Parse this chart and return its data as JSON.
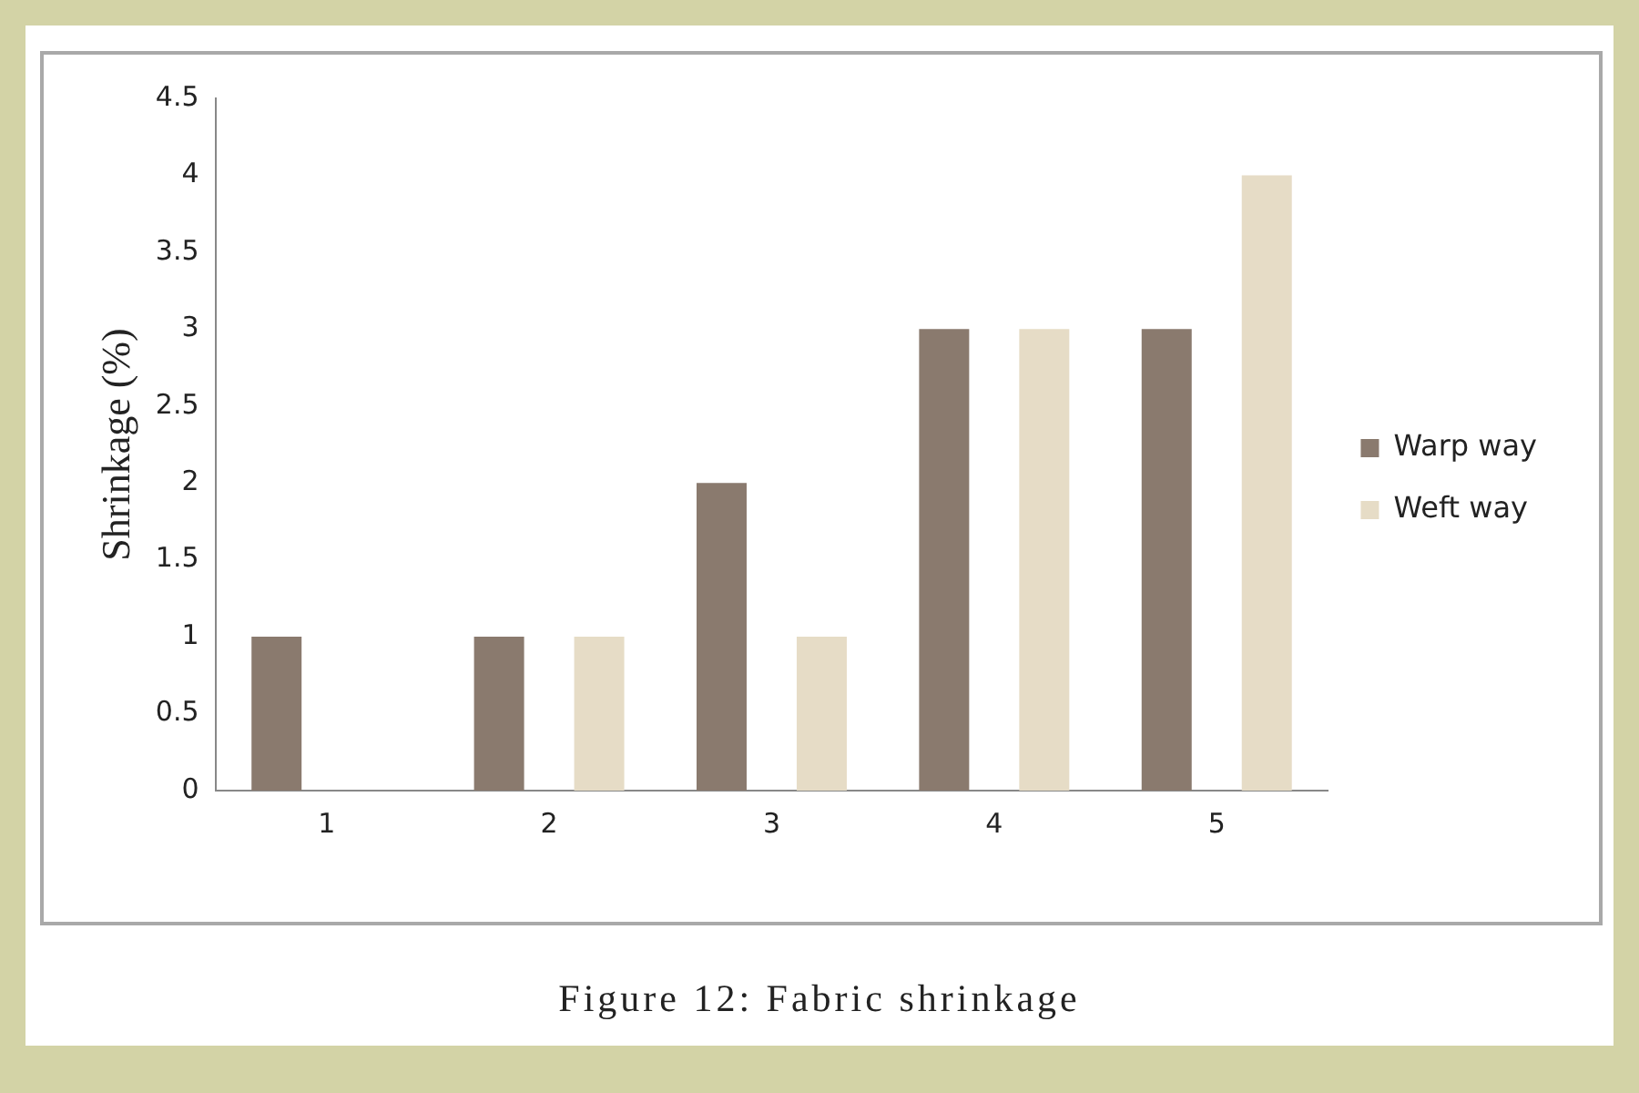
{
  "chart_data": {
    "type": "bar",
    "ylabel": "Shrinkage (%)",
    "categories": [
      "1",
      "2",
      "3",
      "4",
      "5"
    ],
    "series": [
      {
        "name": "Warp way",
        "color": "#8a7a6e",
        "values": [
          1,
          1,
          2,
          3,
          3
        ]
      },
      {
        "name": "Weft way",
        "color": "#e6dcc6",
        "values": [
          0,
          1,
          1,
          3,
          4
        ]
      }
    ],
    "ylim": [
      0,
      4.5
    ],
    "yticks": [
      0,
      0.5,
      1,
      1.5,
      2,
      2.5,
      3,
      3.5,
      4,
      4.5
    ],
    "grid": false,
    "legend": "right",
    "annotations": [
      "Figure 12: Fabric shrinkage"
    ]
  }
}
